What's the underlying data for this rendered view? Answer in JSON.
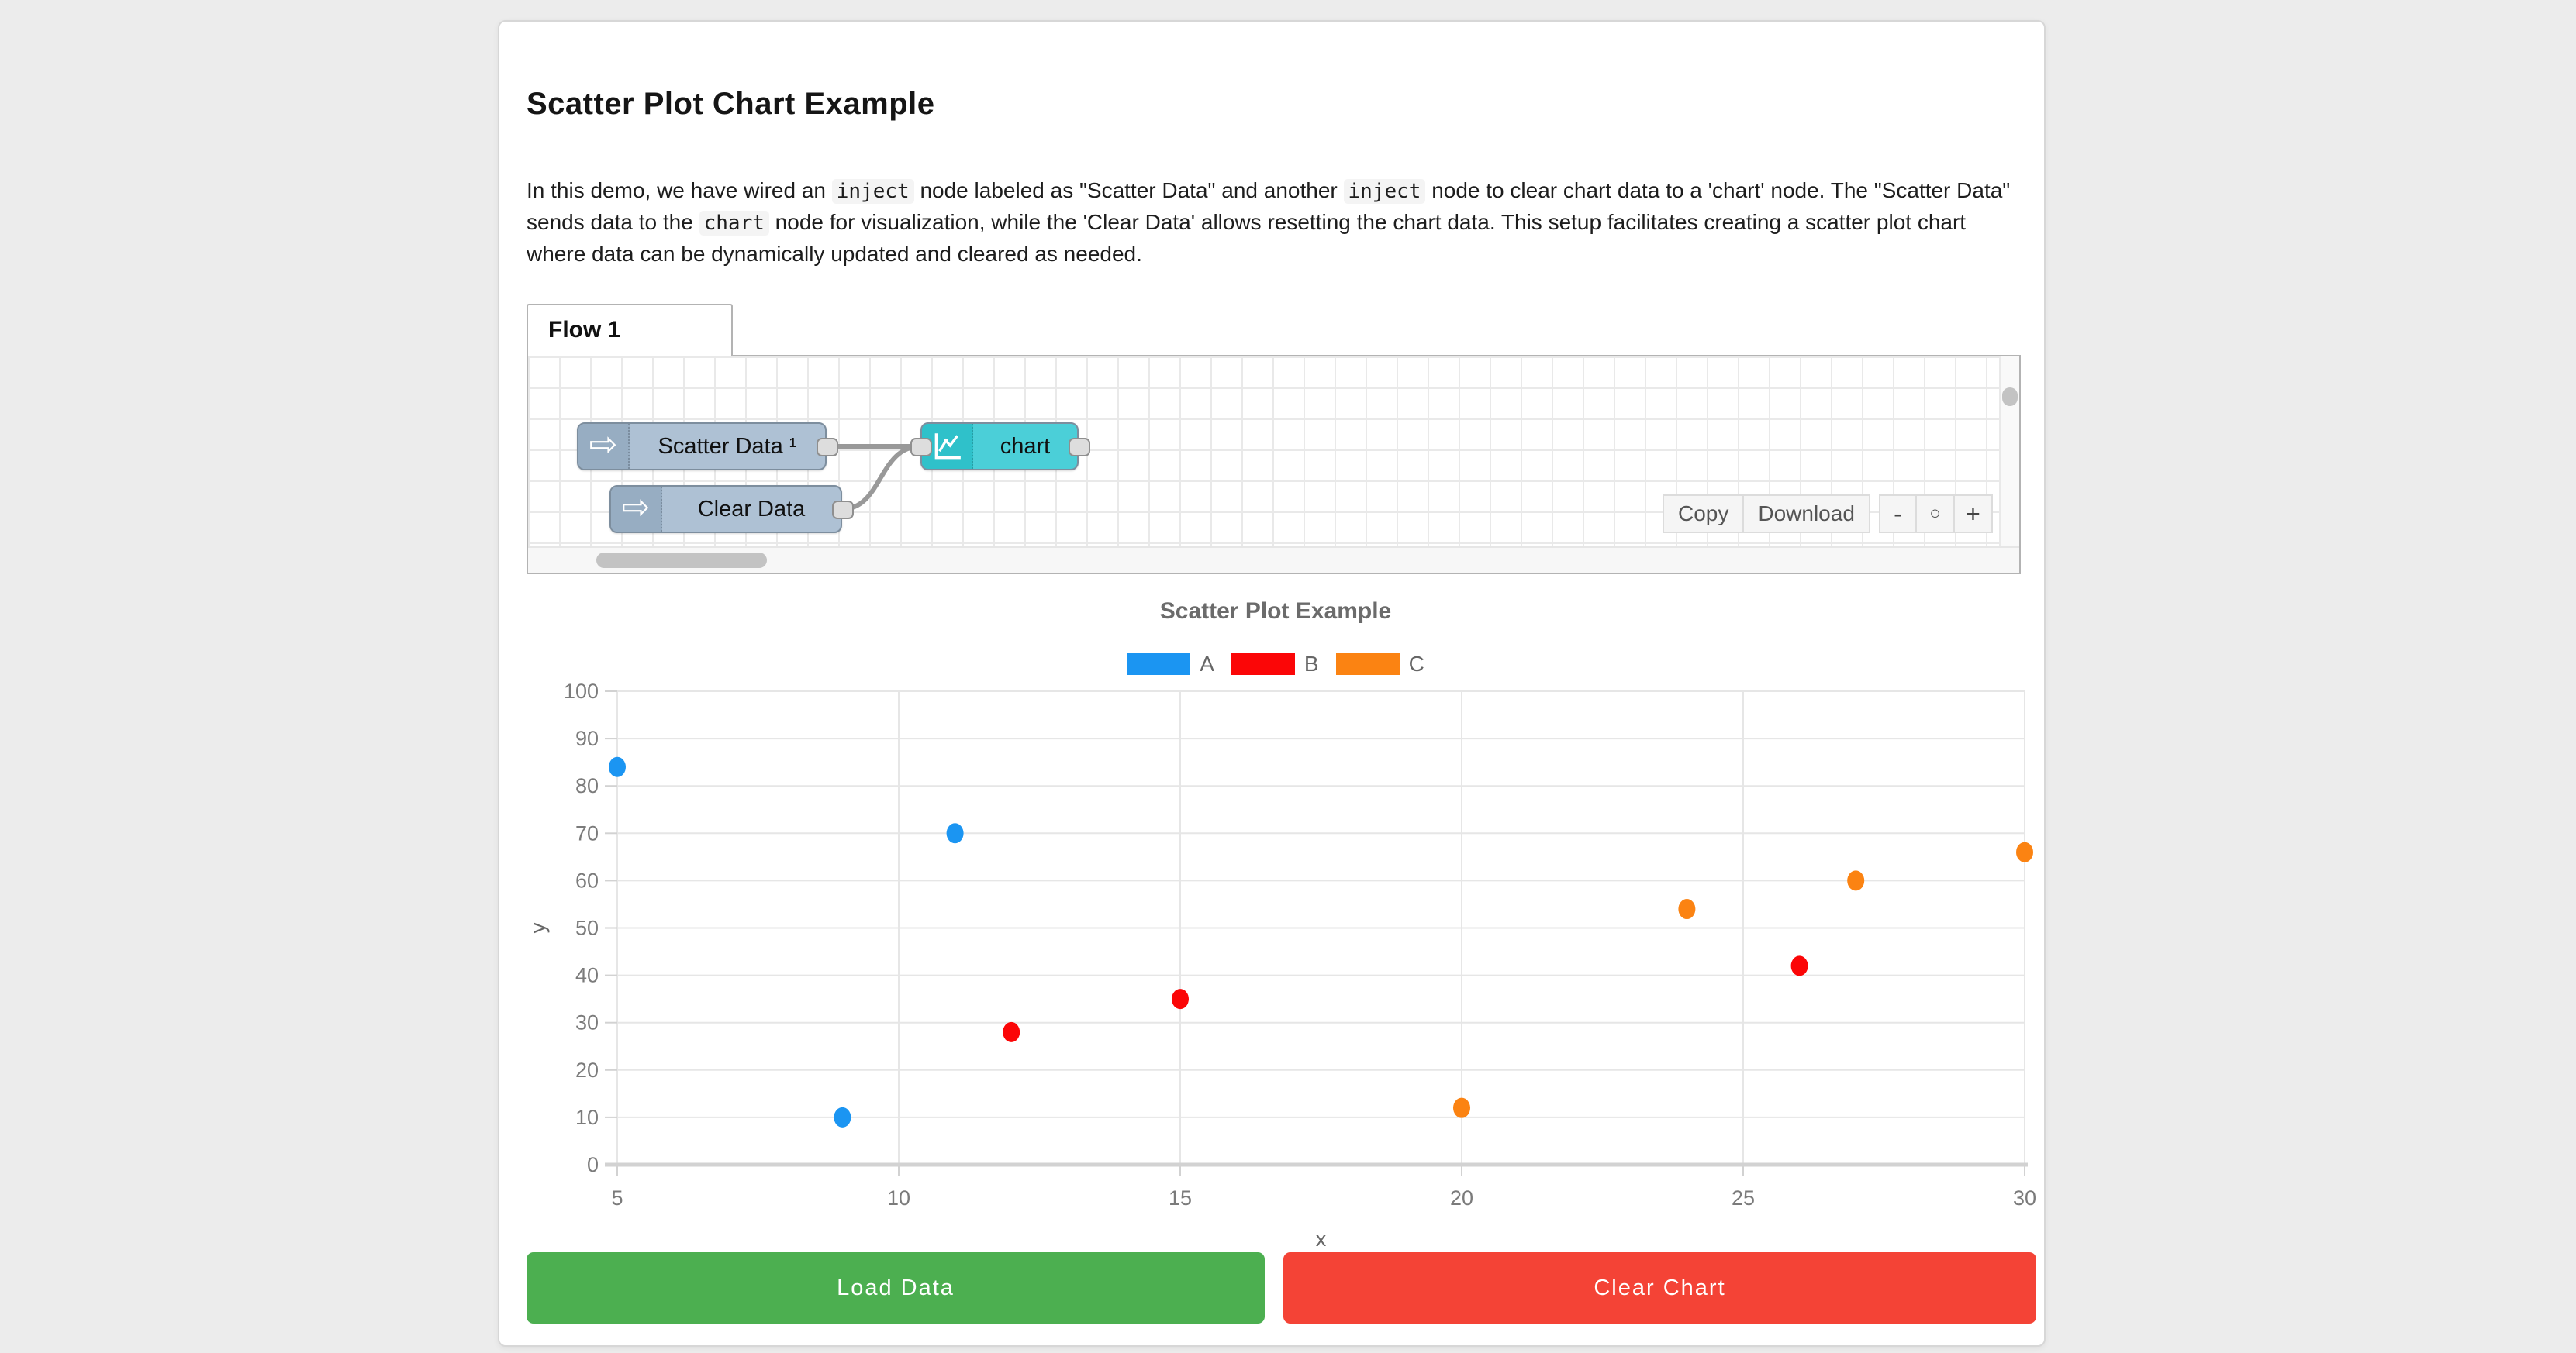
{
  "page": {
    "title": "Scatter Plot Chart Example"
  },
  "description": {
    "segments": [
      {
        "code": false,
        "text": "In this demo, we have wired an "
      },
      {
        "code": true,
        "text": "inject"
      },
      {
        "code": false,
        "text": " node labeled as \"Scatter Data\" and another "
      },
      {
        "code": true,
        "text": "inject"
      },
      {
        "code": false,
        "text": " node to clear chart data to a 'chart' node. The \"Scatter Data\" sends data to the "
      },
      {
        "code": true,
        "text": "chart"
      },
      {
        "code": false,
        "text": " node for visualization, while the 'Clear Data' allows resetting the chart data. This setup facilitates creating a scatter plot chart where data can be dynamically updated and cleared as needed."
      }
    ]
  },
  "flow_editor": {
    "tab_label": "Flow 1",
    "nodes": {
      "scatter_inject": {
        "label": "Scatter Data ¹",
        "type": "inject",
        "body_color": "#aec1d4",
        "icon_color": "#97adc2"
      },
      "clear_inject": {
        "label": "Clear Data",
        "type": "inject",
        "body_color": "#aec1d4",
        "icon_color": "#97adc2"
      },
      "chart_node": {
        "label": "chart",
        "type": "chart",
        "body_color": "#4bcfd8",
        "icon_color": "#2fc1ca"
      }
    },
    "toolbar": {
      "copy_label": "Copy",
      "download_label": "Download"
    },
    "zoom_controls": {
      "zoom_out_label": "-",
      "zoom_reset_label": "○",
      "zoom_in_label": "+"
    },
    "wire_color": "#999999"
  },
  "chart_data": {
    "type": "scatter",
    "title": "Scatter Plot Example",
    "xlabel": "x",
    "ylabel": "y",
    "xlim": [
      5,
      30
    ],
    "ylim": [
      0,
      100
    ],
    "xticks": [
      5,
      10,
      15,
      20,
      25,
      30
    ],
    "yticks": [
      0,
      10,
      20,
      30,
      40,
      50,
      60,
      70,
      80,
      90,
      100
    ],
    "grid": true,
    "legend_position": "top",
    "series": [
      {
        "name": "A",
        "color": "#1b95f2",
        "points": [
          [
            5,
            84
          ],
          [
            9,
            10
          ],
          [
            11,
            70
          ]
        ]
      },
      {
        "name": "B",
        "color": "#fb0607",
        "points": [
          [
            12,
            28
          ],
          [
            15,
            35
          ],
          [
            26,
            42
          ]
        ]
      },
      {
        "name": "C",
        "color": "#fb8312",
        "points": [
          [
            20,
            12
          ],
          [
            24,
            54
          ],
          [
            27,
            60
          ],
          [
            30,
            66
          ]
        ]
      }
    ]
  },
  "actions": {
    "load_button": {
      "label": "Load Data",
      "color": "#4caf50"
    },
    "clear_button": {
      "label": "Clear Chart",
      "color": "#f44336"
    }
  }
}
